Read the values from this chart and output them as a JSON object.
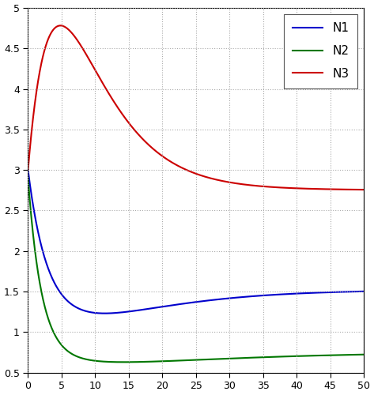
{
  "title": "",
  "xlim": [
    0,
    50
  ],
  "ylim": [
    0.5,
    5
  ],
  "xticks": [
    0,
    5,
    10,
    15,
    20,
    25,
    30,
    35,
    40,
    45,
    50
  ],
  "yticks": [
    0.5,
    1.0,
    1.5,
    2.0,
    2.5,
    3.0,
    3.5,
    4.0,
    4.5,
    5.0
  ],
  "ytick_labels": [
    "0.5",
    "1",
    "1.5",
    "2",
    "2.5",
    "3",
    "3.5",
    "4",
    "4.5",
    "5"
  ],
  "xtick_labels": [
    "0",
    "5",
    "10",
    "15",
    "20",
    "25",
    "30",
    "35",
    "40",
    "45",
    "50"
  ],
  "colors": {
    "N1": "#0000cc",
    "N2": "#007700",
    "N3": "#cc0000"
  },
  "legend_labels": [
    "N1",
    "N2",
    "N3"
  ],
  "figsize": [
    4.73,
    5.0
  ],
  "dpi": 100,
  "background_color": "#ffffff",
  "grid_color": "#aaaaaa",
  "grid_linestyle": ":",
  "linewidth": 1.5
}
